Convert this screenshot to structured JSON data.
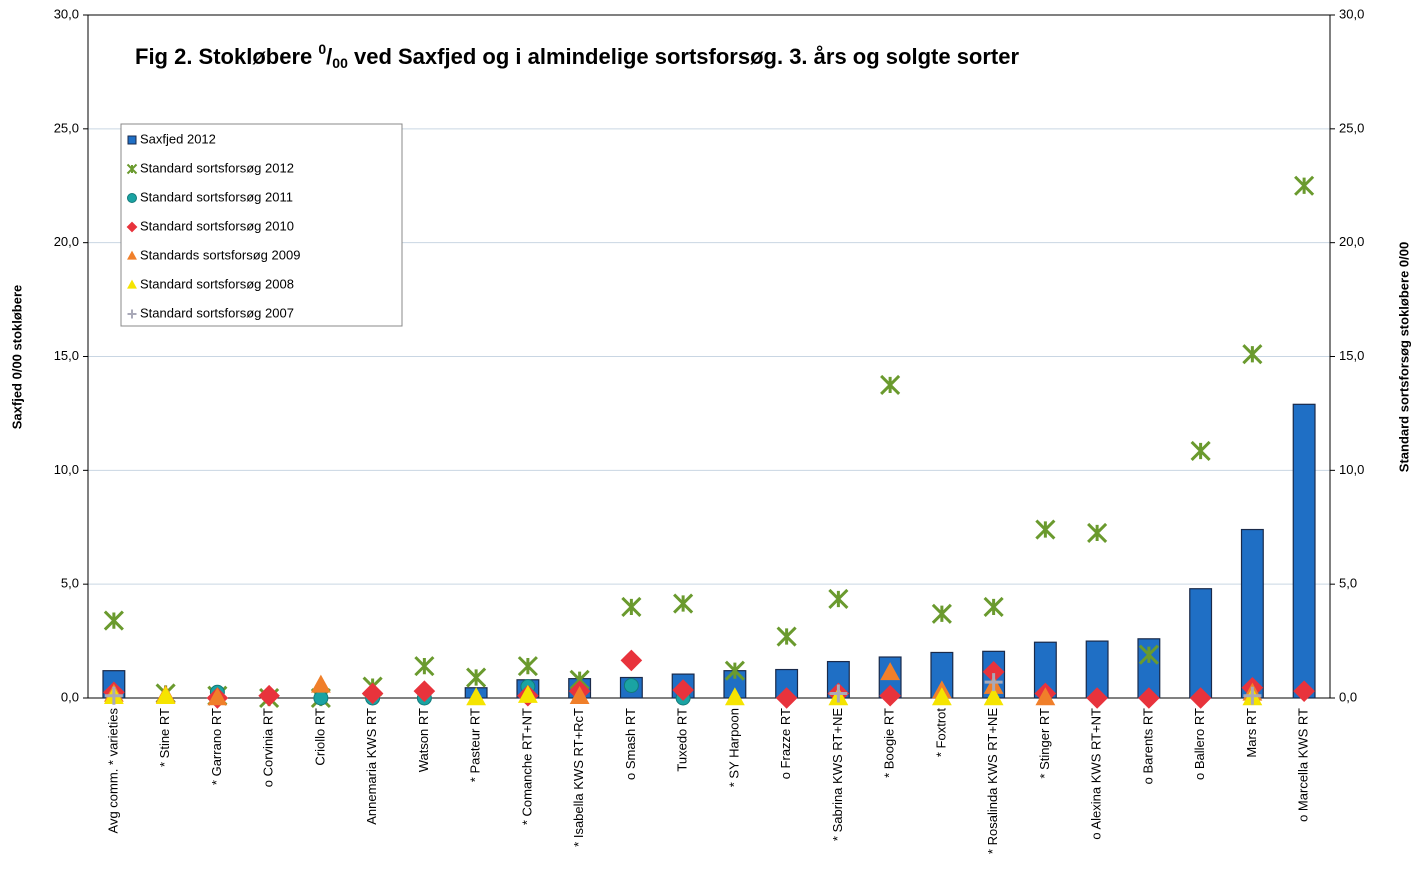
{
  "chart_data": {
    "type": "bar",
    "title": {
      "before": "Fig 2. Stokløbere ",
      "sup": "0",
      "slash": "/",
      "sub": "00",
      "after": " ved Saxfjed og i almindelige sortsforsøg. 3. års og solgte sorter"
    },
    "y_label": "Saxfjed 0/00 stokløbere",
    "y2_label": "Standard sortsforsøg stokløbere 0/00",
    "categories": [
      "Avg comm. * varieties",
      "* Stine RT",
      "* Garrano RT",
      "o Corvinia RT",
      "Criollo RT",
      "Annemaria KWS RT",
      "Watson RT",
      "* Pasteur RT",
      "* Comanche RT+NT",
      "* Isabella KWS RT+RcT",
      "o Smash RT",
      "Tuxedo RT",
      "* SY Harpoon",
      "o Frazze RT",
      "* Sabrina KWS RT+NE",
      "* Boogie RT",
      "* Foxtrot",
      "* Rosalinda KWS RT+NE",
      "* Stinger RT",
      "o Alexina KWS RT+NT",
      "o Barents RT",
      "o Ballero RT",
      "Mars RT",
      "o Marcella KWS RT"
    ],
    "series": [
      {
        "name": "Saxfjed 2012",
        "color": "#1f6fc5",
        "marker": "square",
        "values": [
          1.2,
          0,
          0,
          0,
          0,
          0,
          0,
          0.45,
          0.8,
          0.85,
          0.9,
          1.05,
          1.2,
          1.25,
          1.6,
          1.8,
          2.0,
          2.05,
          2.45,
          2.5,
          2.6,
          4.8,
          7.4,
          12.9
        ]
      },
      {
        "name": "Standard sortsforsøg 2012",
        "color": "#6a9a2e",
        "marker": "x",
        "axis": "y2",
        "values": [
          3.4,
          0.2,
          0.1,
          0.0,
          0.0,
          0.5,
          1.4,
          0.9,
          1.4,
          0.8,
          4.0,
          4.15,
          1.2,
          2.7,
          4.35,
          13.75,
          3.7,
          4.0,
          7.4,
          7.25,
          1.9,
          10.85,
          15.1,
          22.5
        ]
      },
      {
        "name": "Standard sortsforsøg 2011",
        "color": "#1aa3a3",
        "marker": "circle",
        "axis": "y2",
        "values": [
          0.1,
          null,
          0.25,
          null,
          0.0,
          0.0,
          0.0,
          null,
          0.5,
          null,
          0.55,
          0.0,
          null,
          null,
          null,
          null,
          null,
          null,
          null,
          null,
          null,
          null,
          null,
          null
        ]
      },
      {
        "name": "Standard sortsforsøg 2010",
        "color": "#e8333c",
        "marker": "diamond",
        "axis": "y2",
        "values": [
          0.25,
          null,
          0.0,
          0.1,
          null,
          0.2,
          0.3,
          null,
          0.1,
          0.3,
          1.65,
          0.35,
          null,
          0.0,
          0.2,
          0.1,
          null,
          1.15,
          0.2,
          0.0,
          0.0,
          0.0,
          0.45,
          0.3
        ]
      },
      {
        "name": "Standards sortsforsøg 2009",
        "color": "#f07f2a",
        "marker": "triangle",
        "axis": "y2",
        "values": [
          0.15,
          0.1,
          0.0,
          null,
          0.55,
          null,
          null,
          null,
          null,
          0.05,
          null,
          null,
          null,
          null,
          null,
          1.1,
          0.3,
          0.5,
          0.0,
          null,
          null,
          null,
          0.2,
          null
        ]
      },
      {
        "name": "Standard sortsforsøg 2008",
        "color": "#f5e400",
        "marker": "triangle",
        "axis": "y2",
        "values": [
          0.05,
          0.05,
          null,
          null,
          null,
          null,
          null,
          0.0,
          0.1,
          null,
          null,
          null,
          0.0,
          null,
          0.0,
          null,
          0.0,
          0.0,
          null,
          null,
          null,
          null,
          0.0,
          null
        ]
      },
      {
        "name": "Standard sortsforsøg 2007",
        "color": "#a9a9b8",
        "marker": "plus",
        "axis": "y2",
        "values": [
          0.1,
          null,
          null,
          null,
          null,
          null,
          null,
          null,
          null,
          null,
          null,
          null,
          null,
          null,
          0.2,
          null,
          null,
          0.7,
          null,
          null,
          null,
          null,
          0.1,
          null
        ]
      }
    ],
    "ylim": [
      0,
      30
    ],
    "yticks": [
      {
        "value": 0,
        "label": "0,0"
      },
      {
        "value": 5,
        "label": "5,0"
      },
      {
        "value": 10,
        "label": "10,0"
      },
      {
        "value": 15,
        "label": "15,0"
      },
      {
        "value": 20,
        "label": "20,0"
      },
      {
        "value": 25,
        "label": "25,0"
      },
      {
        "value": 30,
        "label": "30,0"
      }
    ],
    "y2lim": [
      0,
      30
    ],
    "y2ticks": [
      {
        "value": 0,
        "label": "0,0"
      },
      {
        "value": 5,
        "label": "5,0"
      },
      {
        "value": 10,
        "label": "10,0"
      },
      {
        "value": 15,
        "label": "15,0"
      },
      {
        "value": 20,
        "label": "20,0"
      },
      {
        "value": 25,
        "label": "25,0"
      },
      {
        "value": 30,
        "label": "30,0"
      }
    ],
    "grid": true,
    "legend": "top-left"
  }
}
